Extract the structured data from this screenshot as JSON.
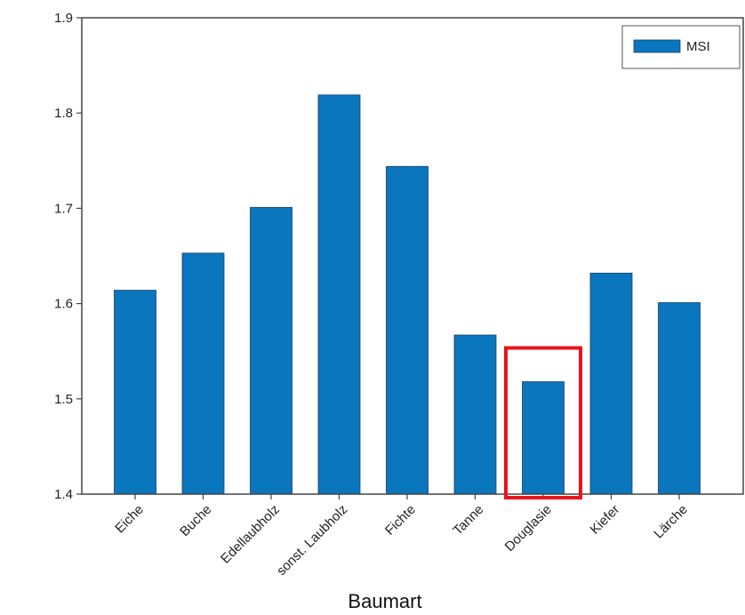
{
  "chart_data": {
    "type": "bar",
    "title": "",
    "xlabel": "Baumart",
    "ylabel": "",
    "categories": [
      "Eiche",
      "Buche",
      "Edellaubholz",
      "sonst. Laubholz",
      "Fichte",
      "Tanne",
      "Douglasie",
      "Kiefer",
      "Lärche"
    ],
    "series": [
      {
        "name": "MSI",
        "values": [
          1.614,
          1.653,
          1.701,
          1.819,
          1.744,
          1.567,
          1.518,
          1.632,
          1.601
        ],
        "color": "#0a76be"
      }
    ],
    "ylim": [
      1.4,
      1.9
    ],
    "yticks": [
      "1.4",
      "1.5",
      "1.6",
      "1.7",
      "1.8",
      "1.9"
    ],
    "grid": false,
    "legend_position": "top-right",
    "highlight": {
      "category": "Douglasie",
      "color": "#e8151b"
    }
  }
}
